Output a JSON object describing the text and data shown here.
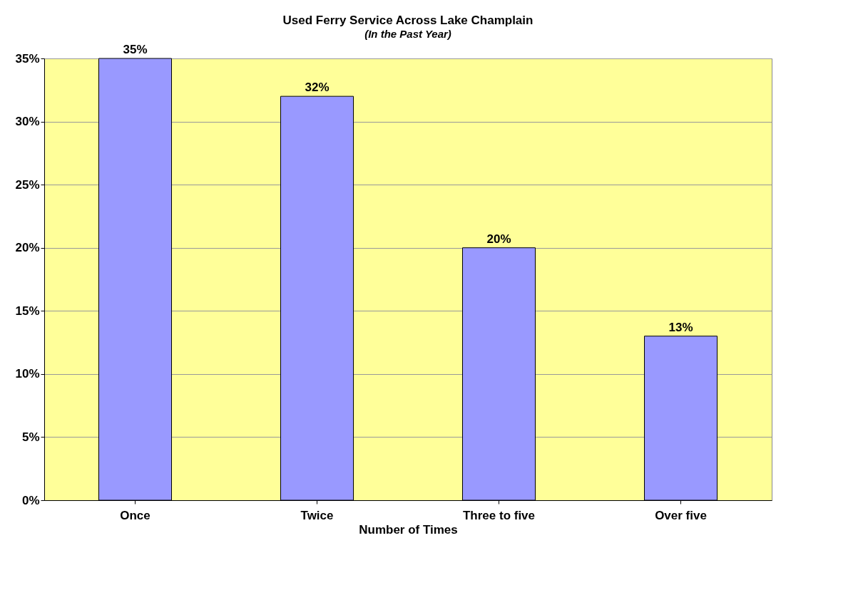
{
  "chart_data": {
    "type": "bar",
    "title": "Used Ferry Service Across Lake Champlain",
    "subtitle": "(In the Past Year)",
    "xlabel": "Number of Times",
    "categories": [
      "Once",
      "Twice",
      "Three to five",
      "Over five"
    ],
    "values": [
      35,
      32,
      20,
      13
    ],
    "color": "#9999ff",
    "value_labels": [
      "35%",
      "32%",
      "20%",
      "13%"
    ],
    "ylim": [
      0,
      35
    ],
    "yticks": [
      {
        "value": 0,
        "label": "0%"
      },
      {
        "value": 5,
        "label": "5%"
      },
      {
        "value": 10,
        "label": "10%"
      },
      {
        "value": 15,
        "label": "15%"
      },
      {
        "value": 20,
        "label": "20%"
      },
      {
        "value": 25,
        "label": "25%"
      },
      {
        "value": 30,
        "label": "30%"
      },
      {
        "value": 35,
        "label": "35%"
      }
    ],
    "grid": "y"
  }
}
